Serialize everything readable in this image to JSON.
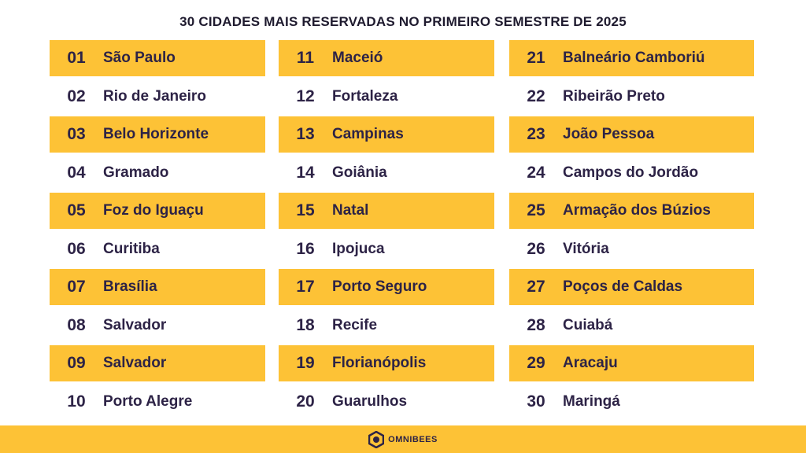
{
  "title": "30 CIDADES MAIS RESERVADAS NO PRIMEIRO SEMESTRE DE 2025",
  "colors": {
    "accent": "#FDC236",
    "text": "#2D2346"
  },
  "columns": [
    [
      {
        "n": "01",
        "city": "São Paulo"
      },
      {
        "n": "02",
        "city": "Rio de Janeiro"
      },
      {
        "n": "03",
        "city": "Belo Horizonte"
      },
      {
        "n": "04",
        "city": "Gramado"
      },
      {
        "n": "05",
        "city": "Foz do Iguaçu"
      },
      {
        "n": "06",
        "city": "Curitiba"
      },
      {
        "n": "07",
        "city": "Brasília"
      },
      {
        "n": "08",
        "city": "Salvador"
      },
      {
        "n": "09",
        "city": "Salvador"
      },
      {
        "n": "10",
        "city": "Porto Alegre"
      }
    ],
    [
      {
        "n": "11",
        "city": "Maceió"
      },
      {
        "n": "12",
        "city": "Fortaleza"
      },
      {
        "n": "13",
        "city": "Campinas"
      },
      {
        "n": "14",
        "city": "Goiânia"
      },
      {
        "n": "15",
        "city": "Natal"
      },
      {
        "n": "16",
        "city": "Ipojuca"
      },
      {
        "n": "17",
        "city": "Porto Seguro"
      },
      {
        "n": "18",
        "city": "Recife"
      },
      {
        "n": "19",
        "city": "Florianópolis"
      },
      {
        "n": "20",
        "city": "Guarulhos"
      }
    ],
    [
      {
        "n": "21",
        "city": "Balneário Camboriú"
      },
      {
        "n": "22",
        "city": "Ribeirão Preto"
      },
      {
        "n": "23",
        "city": "João Pessoa"
      },
      {
        "n": "24",
        "city": "Campos do Jordão"
      },
      {
        "n": "25",
        "city": "Armação dos Búzios"
      },
      {
        "n": "26",
        "city": "Vitória"
      },
      {
        "n": "27",
        "city": "Poços de Caldas"
      },
      {
        "n": "28",
        "city": "Cuiabá"
      },
      {
        "n": "29",
        "city": "Aracaju"
      },
      {
        "n": "30",
        "city": "Maringá"
      }
    ]
  ],
  "footer": {
    "logo_text": "OMNIBEES",
    "logo_icon": "hexagon-logo-icon"
  }
}
